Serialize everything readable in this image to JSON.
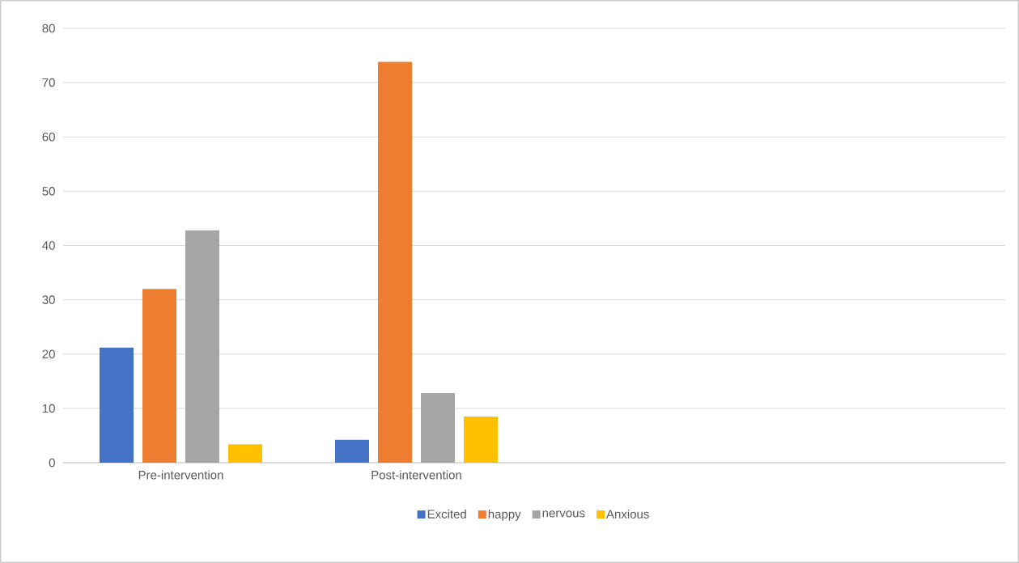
{
  "chart_data": {
    "type": "bar",
    "categories": [
      "Pre-intervention",
      "Post-intervention",
      null,
      null
    ],
    "series": [
      {
        "name": "Excited",
        "color": "#4472c4",
        "values": [
          21.2,
          4.2,
          null,
          null
        ]
      },
      {
        "name": "happy",
        "color": "#ed7d31",
        "values": [
          32.0,
          73.8,
          null,
          null
        ]
      },
      {
        "name": "nervous",
        "color": "#a5a5a5",
        "values": [
          42.8,
          12.8,
          null,
          null
        ]
      },
      {
        "name": "Anxious",
        "color": "#ffc000",
        "values": [
          3.4,
          8.5,
          null,
          null
        ]
      }
    ],
    "ylim": [
      0,
      80
    ],
    "yticks": [
      0,
      10,
      20,
      30,
      40,
      50,
      60,
      70,
      80
    ],
    "grid": "y",
    "legend": "bottom"
  }
}
